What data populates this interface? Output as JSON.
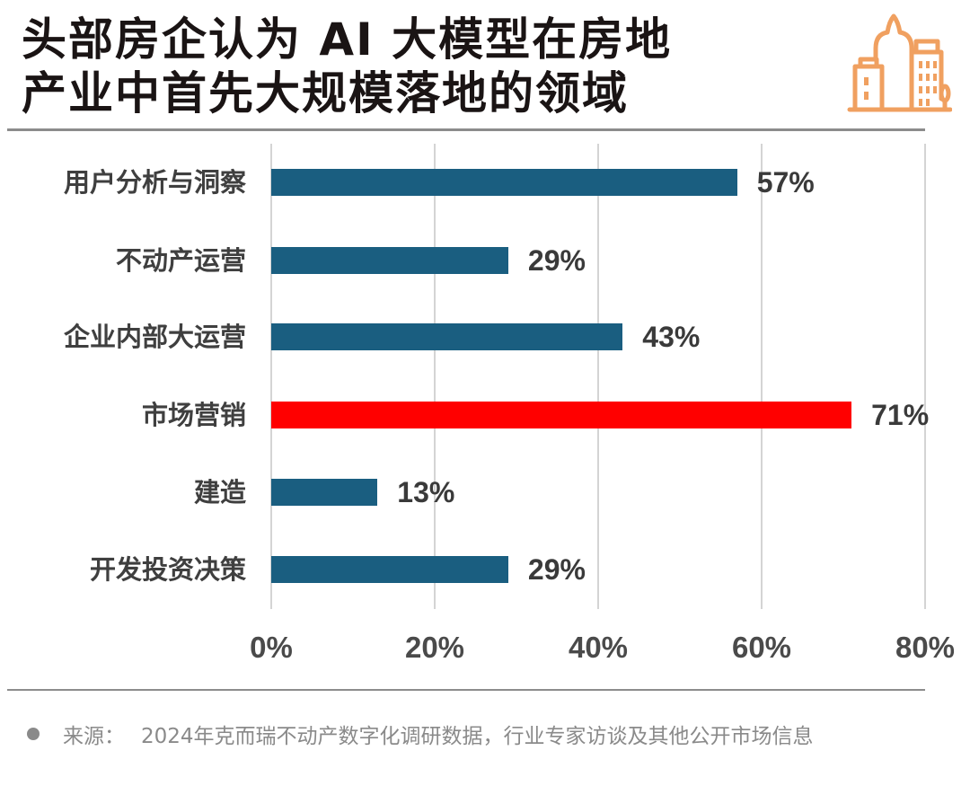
{
  "header": {
    "title_lines": [
      "头部房企认为 AI 大模型在房地",
      "产业中首先大规模落地的领域"
    ],
    "logo_icon": "city-buildings-icon",
    "logo_color": "#f0a060"
  },
  "chart_data": {
    "type": "bar",
    "orientation": "horizontal",
    "title": "头部房企认为 AI 大模型在房地产业中首先大规模落地的领域",
    "categories": [
      "用户分析与洞察",
      "不动产运营",
      "企业内部大运营",
      "市场营销",
      "建造",
      "开发投资决策"
    ],
    "values": [
      57,
      29,
      43,
      71,
      13,
      29
    ],
    "value_labels": [
      "57%",
      "29%",
      "43%",
      "71%",
      "13%",
      "29%"
    ],
    "bar_colors": [
      "#1a5e80",
      "#1a5e80",
      "#1a5e80",
      "#ff0000",
      "#1a5e80",
      "#1a5e80"
    ],
    "highlight_category": "市场营销",
    "xlabel": "",
    "ylabel": "",
    "xlim": [
      0,
      80
    ],
    "xticks": [
      0,
      20,
      40,
      60,
      80
    ],
    "xtick_labels": [
      "0%",
      "20%",
      "40%",
      "60%",
      "80%"
    ],
    "grid": "vertical",
    "legend": "none"
  },
  "footer": {
    "source_prefix": "来源：",
    "source_text": "2024年克而瑞不动产数字化调研数据，行业专家访谈及其他公开市场信息"
  },
  "colors": {
    "bar_default": "#1a5e80",
    "bar_highlight": "#ff0000",
    "gridline": "#d4d4d4",
    "rule": "#8c8c8c"
  }
}
